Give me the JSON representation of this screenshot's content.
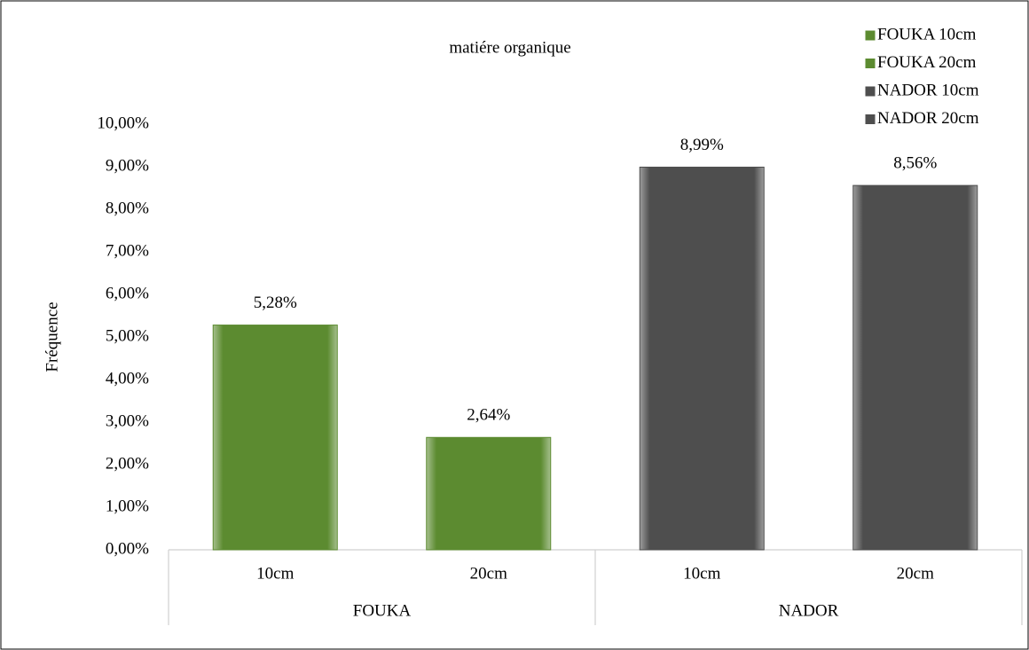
{
  "chart_data": {
    "type": "bar",
    "title": "matiére organique",
    "y_label": "Fréquence",
    "categories": [
      "10cm",
      "20cm",
      "10cm",
      "20cm"
    ],
    "groups": [
      "FOUKA",
      "NADOR"
    ],
    "series": [
      {
        "name": "FOUKA 10cm",
        "color": "#5c8b30",
        "values": [
          5.28,
          null,
          null,
          null
        ],
        "value_labels": [
          "5,28%",
          null,
          null,
          null
        ]
      },
      {
        "name": "FOUKA 20cm",
        "color": "#5c8b30",
        "values": [
          null,
          2.64,
          null,
          null
        ],
        "value_labels": [
          null,
          "2,64%",
          null,
          null
        ]
      },
      {
        "name": "NADOR 10cm",
        "color": "#4e4e4e",
        "values": [
          null,
          null,
          8.99,
          null
        ],
        "value_labels": [
          null,
          null,
          "8,99%",
          null
        ]
      },
      {
        "name": "NADOR 20cm",
        "color": "#4e4e4e",
        "values": [
          null,
          null,
          null,
          8.56
        ],
        "value_labels": [
          null,
          null,
          null,
          "8,56%"
        ]
      }
    ],
    "ylim": [
      0,
      10
    ],
    "yticks": [
      {
        "value": 0,
        "label": "0,00%"
      },
      {
        "value": 1,
        "label": "1,00%"
      },
      {
        "value": 2,
        "label": "2,00%"
      },
      {
        "value": 3,
        "label": "3,00%"
      },
      {
        "value": 4,
        "label": "4,00%"
      },
      {
        "value": 5,
        "label": "5,00%"
      },
      {
        "value": 6,
        "label": "6,00%"
      },
      {
        "value": 7,
        "label": "7,00%"
      },
      {
        "value": 8,
        "label": "8,00%"
      },
      {
        "value": 9,
        "label": "9,00%"
      },
      {
        "value": 10,
        "label": "10,00%"
      }
    ],
    "grid": false,
    "legend": "top-right"
  }
}
